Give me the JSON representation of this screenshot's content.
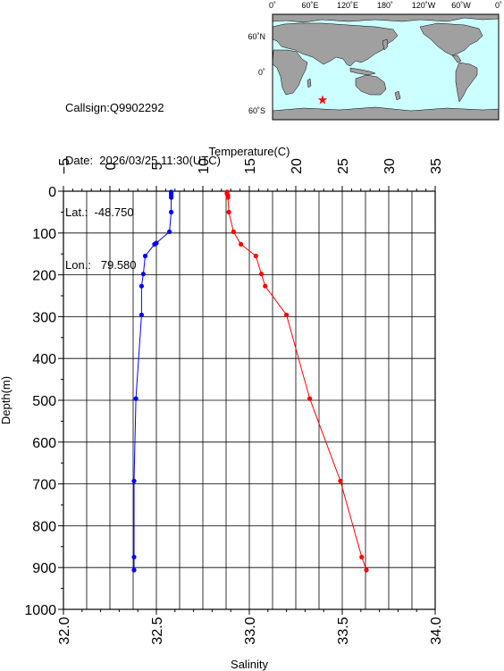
{
  "station": {
    "callsign": "Callsign:Q9902292",
    "date": "Date:  2026/03/25 11:30(UTC)",
    "lat": "Lat.:  -48.750",
    "lon": "Lon.:   79.580"
  },
  "map": {
    "lon_labels": [
      "0˚",
      "60˚E",
      "120˚E",
      "180˚",
      "120˚W",
      "60˚W",
      "0˚"
    ],
    "lat_labels": [
      "60˚N",
      "0˚",
      "60˚S"
    ],
    "ocean_color": "#ccffff",
    "land_color": "#a0a0a0",
    "marker_color": "#ff0000",
    "station_lon": 79.58,
    "station_lat": -48.75
  },
  "chart_data": {
    "type": "line",
    "title": "",
    "ylabel": "Depth(m)",
    "ylim": [
      1000,
      0
    ],
    "yticks": [
      0,
      100,
      200,
      300,
      400,
      500,
      600,
      700,
      800,
      900,
      1000
    ],
    "top_axis": {
      "label": "Temperature(C)",
      "lim": [
        -5,
        35
      ],
      "ticks": [
        -5,
        0,
        5,
        10,
        15,
        20,
        25,
        30,
        35
      ]
    },
    "bottom_axis": {
      "label": "Salinity",
      "lim": [
        32.0,
        34.0
      ],
      "ticks": [
        "32.0",
        "32.5",
        "33.0",
        "33.5",
        "34.0"
      ]
    },
    "grid": true,
    "series": [
      {
        "axis": "top",
        "color": "#ff0000",
        "points": [
          {
            "depth": 2,
            "value": 12.6
          },
          {
            "depth": 6,
            "value": 12.6
          },
          {
            "depth": 10,
            "value": 12.7
          },
          {
            "depth": 15,
            "value": 12.7
          },
          {
            "depth": 50,
            "value": 12.8
          },
          {
            "depth": 97,
            "value": 13.3
          },
          {
            "depth": 127,
            "value": 14.1
          },
          {
            "depth": 155,
            "value": 15.7
          },
          {
            "depth": 198,
            "value": 16.3
          },
          {
            "depth": 227,
            "value": 16.7
          },
          {
            "depth": 296,
            "value": 19.0
          },
          {
            "depth": 496,
            "value": 21.5
          },
          {
            "depth": 693,
            "value": 24.8
          },
          {
            "depth": 875,
            "value": 27.1
          },
          {
            "depth": 906,
            "value": 27.6
          }
        ]
      },
      {
        "axis": "bottom",
        "color": "#0000ff",
        "points": [
          {
            "depth": 2,
            "value": 32.58
          },
          {
            "depth": 6,
            "value": 32.58
          },
          {
            "depth": 10,
            "value": 32.58
          },
          {
            "depth": 15,
            "value": 32.58
          },
          {
            "depth": 50,
            "value": 32.58
          },
          {
            "depth": 97,
            "value": 32.57
          },
          {
            "depth": 124,
            "value": 32.5
          },
          {
            "depth": 127,
            "value": 32.49
          },
          {
            "depth": 155,
            "value": 32.44
          },
          {
            "depth": 198,
            "value": 32.43
          },
          {
            "depth": 227,
            "value": 32.42
          },
          {
            "depth": 296,
            "value": 32.42
          },
          {
            "depth": 496,
            "value": 32.39
          },
          {
            "depth": 693,
            "value": 32.38
          },
          {
            "depth": 875,
            "value": 32.38
          },
          {
            "depth": 906,
            "value": 32.38
          }
        ]
      }
    ]
  }
}
